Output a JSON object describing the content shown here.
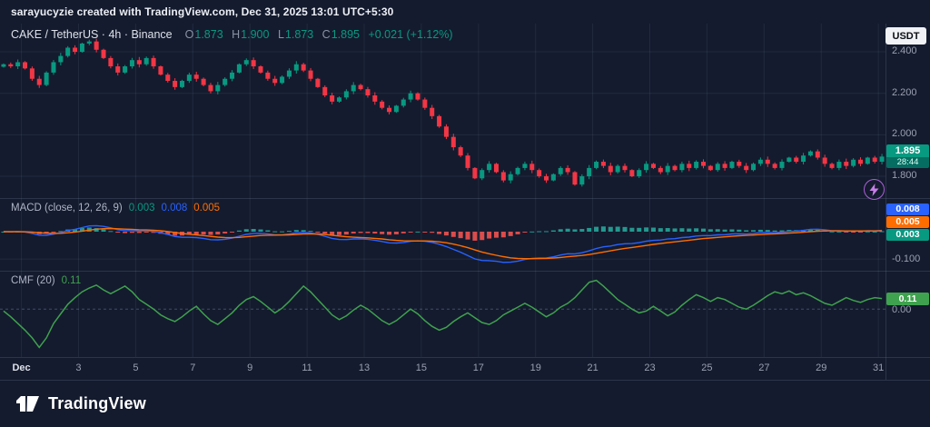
{
  "header": {
    "attribution": "sarayucyzie created with TradingView.com, Dec 31, 2025 13:01 UTC+5:30"
  },
  "legend": {
    "symbol_line": "CAKE / TetherUS · 4h · Binance",
    "ohlc": [
      {
        "label": "O",
        "value": "1.873"
      },
      {
        "label": "H",
        "value": "1.900"
      },
      {
        "label": "L",
        "value": "1.873"
      },
      {
        "label": "C",
        "value": "1.895"
      }
    ],
    "change": "+0.021 (+1.12%)"
  },
  "price_axis": {
    "currency": "USDT",
    "ticks": [
      "2.400",
      "2.200",
      "2.000",
      "1.800"
    ],
    "last_price": "1.895",
    "countdown": "28:44"
  },
  "macd": {
    "title": "MACD (close, 12, 26, 9)",
    "hist_value": "0.003",
    "macd_value": "0.008",
    "signal_value": "0.005",
    "axis": {
      "macd": "0.008",
      "signal": "0.005",
      "hist": "0.003",
      "grid_label": "-0.100"
    }
  },
  "cmf": {
    "title": "CMF (20)",
    "value": "0.11",
    "axis": {
      "value": "0.11",
      "zero": "0.00"
    }
  },
  "time_axis": {
    "labels": [
      "Dec",
      "3",
      "5",
      "7",
      "9",
      "11",
      "13",
      "15",
      "17",
      "19",
      "21",
      "23",
      "25",
      "27",
      "29",
      "31"
    ],
    "days": [
      1,
      3,
      5,
      7,
      9,
      11,
      13,
      15,
      17,
      19,
      21,
      23,
      25,
      27,
      29,
      31
    ]
  },
  "footer": {
    "brand": "TradingView"
  },
  "colors": {
    "background": "#141b2e",
    "up": "#089981",
    "down": "#f23645",
    "macd_line": "#2962ff",
    "signal_line": "#ff6d00",
    "cmf_line": "#3fa24e",
    "text_dim": "#9aa0b0"
  },
  "chart_data": [
    {
      "id": "price",
      "type": "candlestick",
      "title": "CAKE / TetherUS 4h Binance",
      "ohlc_legend": {
        "open": 1.873,
        "high": 1.9,
        "low": 1.873,
        "close": 1.895,
        "change": 0.021,
        "change_pct": 1.12
      },
      "x_range": "Dec 1 - Dec 31 (4h bars)",
      "ylim": [
        1.695,
        2.536
      ],
      "yticks": [
        2.4,
        2.2,
        2.0,
        1.8
      ],
      "up_color": "#089981",
      "down_color": "#f23645",
      "closes": [
        2.34,
        2.33,
        2.35,
        2.32,
        2.27,
        2.24,
        2.3,
        2.35,
        2.38,
        2.42,
        2.4,
        2.44,
        2.45,
        2.41,
        2.37,
        2.33,
        2.3,
        2.33,
        2.36,
        2.34,
        2.37,
        2.33,
        2.29,
        2.26,
        2.23,
        2.26,
        2.29,
        2.27,
        2.24,
        2.21,
        2.24,
        2.27,
        2.3,
        2.34,
        2.36,
        2.33,
        2.3,
        2.27,
        2.25,
        2.28,
        2.31,
        2.34,
        2.31,
        2.27,
        2.23,
        2.19,
        2.16,
        2.18,
        2.21,
        2.24,
        2.22,
        2.19,
        2.16,
        2.13,
        2.11,
        2.14,
        2.17,
        2.2,
        2.17,
        2.13,
        2.09,
        2.04,
        1.99,
        1.94,
        1.9,
        1.84,
        1.79,
        1.83,
        1.86,
        1.82,
        1.78,
        1.81,
        1.84,
        1.86,
        1.83,
        1.8,
        1.78,
        1.81,
        1.84,
        1.82,
        1.76,
        1.8,
        1.84,
        1.87,
        1.85,
        1.82,
        1.85,
        1.83,
        1.8,
        1.83,
        1.86,
        1.84,
        1.82,
        1.85,
        1.83,
        1.86,
        1.84,
        1.87,
        1.85,
        1.83,
        1.86,
        1.84,
        1.87,
        1.85,
        1.83,
        1.86,
        1.88,
        1.86,
        1.84,
        1.87,
        1.89,
        1.87,
        1.9,
        1.92,
        1.89,
        1.86,
        1.84,
        1.87,
        1.85,
        1.88,
        1.86,
        1.89,
        1.87,
        1.895
      ]
    },
    {
      "id": "macd",
      "type": "macd",
      "title": "MACD (close, 12, 26, 9)",
      "params": {
        "fast": 12,
        "slow": 26,
        "signal": 9,
        "source": "close"
      },
      "current": {
        "hist": 0.003,
        "macd": 0.008,
        "signal": 0.005
      },
      "ylim": [
        0.123,
        -0.143
      ],
      "grid_level": -0.1,
      "colors": {
        "macd": "#2962ff",
        "signal": "#ff6d00",
        "hist_up": "#26a69a",
        "hist_down": "#ef5350"
      }
    },
    {
      "id": "cmf",
      "type": "line",
      "title": "CMF (20)",
      "current_value": 0.11,
      "zero_line": 0.0,
      "ylim": [
        0.4,
        -0.5
      ],
      "color": "#3fa24e",
      "values": [
        -0.02,
        -0.08,
        -0.15,
        -0.22,
        -0.3,
        -0.4,
        -0.3,
        -0.15,
        -0.05,
        0.05,
        0.12,
        0.18,
        0.22,
        0.25,
        0.2,
        0.16,
        0.2,
        0.24,
        0.18,
        0.1,
        0.05,
        0.0,
        -0.06,
        -0.1,
        -0.13,
        -0.08,
        -0.02,
        0.03,
        -0.05,
        -0.12,
        -0.16,
        -0.1,
        -0.04,
        0.04,
        0.1,
        0.13,
        0.08,
        0.02,
        -0.04,
        0.01,
        0.08,
        0.16,
        0.24,
        0.18,
        0.1,
        0.02,
        -0.06,
        -0.11,
        -0.07,
        -0.01,
        0.04,
        0.0,
        -0.06,
        -0.12,
        -0.16,
        -0.12,
        -0.06,
        0.0,
        -0.05,
        -0.12,
        -0.18,
        -0.22,
        -0.19,
        -0.13,
        -0.08,
        -0.04,
        -0.09,
        -0.14,
        -0.16,
        -0.12,
        -0.06,
        -0.02,
        0.02,
        0.06,
        0.02,
        -0.03,
        -0.08,
        -0.04,
        0.02,
        0.06,
        0.12,
        0.2,
        0.28,
        0.3,
        0.24,
        0.17,
        0.1,
        0.05,
        0.0,
        -0.04,
        -0.02,
        0.03,
        -0.02,
        -0.07,
        -0.03,
        0.04,
        0.1,
        0.15,
        0.12,
        0.08,
        0.12,
        0.1,
        0.06,
        0.02,
        0.0,
        0.04,
        0.09,
        0.14,
        0.18,
        0.16,
        0.19,
        0.15,
        0.17,
        0.14,
        0.1,
        0.06,
        0.04,
        0.08,
        0.12,
        0.09,
        0.07,
        0.1,
        0.12,
        0.11
      ]
    }
  ]
}
